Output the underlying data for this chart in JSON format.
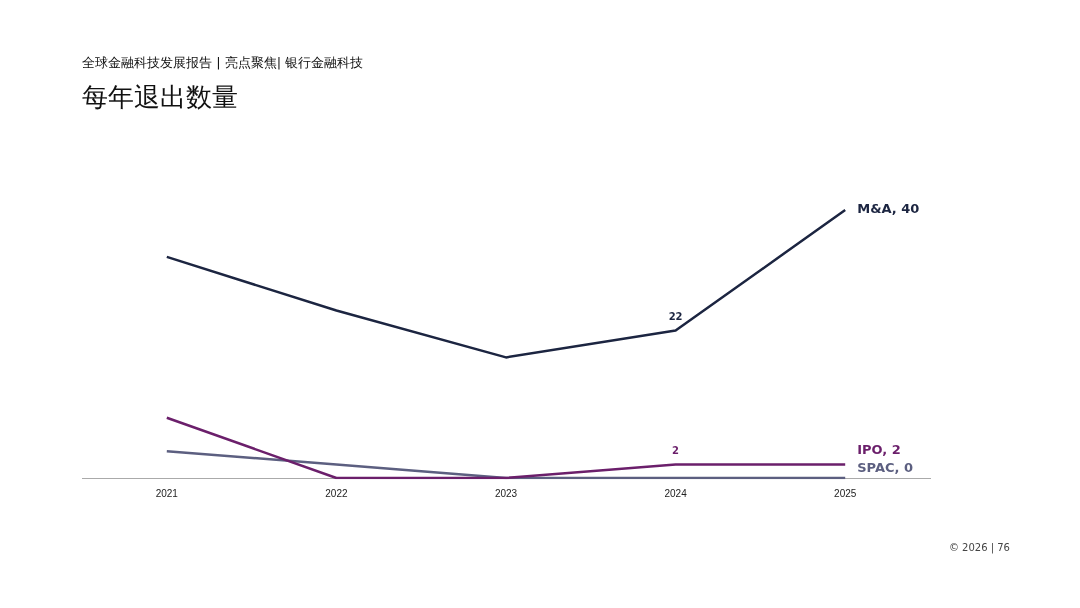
{
  "chart_data": {
    "type": "line",
    "subtitle": "全球金融科技发展报告 | 亮点聚焦| 银行金融科技",
    "title": "每年退出数量",
    "categories": [
      "2021",
      "2022",
      "2023",
      "2024",
      "2025"
    ],
    "series": [
      {
        "name": "M&A",
        "color": "#1c2541",
        "values": [
          33,
          25,
          18,
          22,
          40
        ],
        "value_labels": [
          null,
          null,
          null,
          "22",
          ", 40"
        ]
      },
      {
        "name": "IPO",
        "color": "#6b1f6b",
        "values": [
          9,
          0,
          0,
          2,
          2
        ],
        "value_labels": [
          null,
          null,
          null,
          "2",
          ", 2"
        ]
      },
      {
        "name": "SPAC",
        "color": "#5c5f80",
        "values": [
          4,
          2,
          0,
          0,
          0
        ],
        "value_labels": [
          null,
          null,
          null,
          null,
          ", 0"
        ]
      }
    ],
    "grid": false,
    "legend": false,
    "tick_labels": "x",
    "marker": "none",
    "line_style": "solid",
    "annotations": [
      "© 2026 | 76"
    ]
  }
}
